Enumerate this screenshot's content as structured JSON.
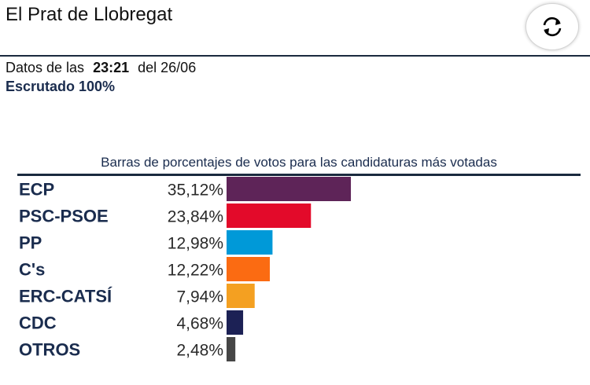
{
  "header": {
    "city": "El Prat de Llobregat"
  },
  "status": {
    "data_prefix": "Datos de las",
    "time": "23:21",
    "date_text": "del 26/06",
    "scrutiny": "Escrutado 100%"
  },
  "icons": {
    "refresh": "refresh-icon"
  },
  "chart_data": {
    "type": "bar",
    "orientation": "horizontal",
    "title": "Barras de porcentajes de votos para las candidaturas más votadas",
    "categories": [
      "ECP",
      "PSC-PSOE",
      "PP",
      "C's",
      "ERC-CATSÍ",
      "CDC",
      "OTROS"
    ],
    "values": [
      35.12,
      23.84,
      12.98,
      12.22,
      7.94,
      4.68,
      2.48
    ],
    "labels": [
      "35,12%",
      "23,84%",
      "12,98%",
      "12,22%",
      "7,94%",
      "4,68%",
      "2,48%"
    ],
    "colors": [
      "#5e2458",
      "#e30a2a",
      "#0099d8",
      "#fb6b12",
      "#f4a021",
      "#1c2155",
      "#464646"
    ],
    "grid": false,
    "legend": "none"
  }
}
